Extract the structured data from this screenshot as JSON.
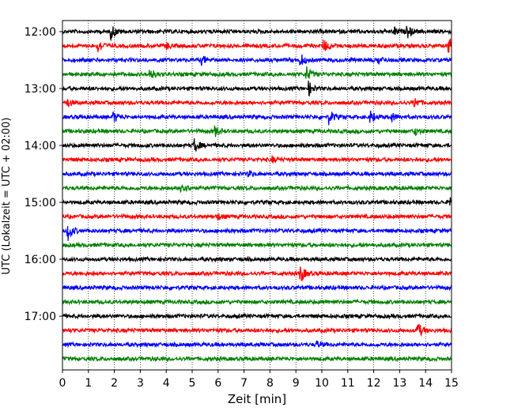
{
  "chart_data": {
    "type": "line",
    "title": "",
    "xlabel": "Zeit  [min]",
    "ylabel": "UTC (Lokalzeit = UTC + 02:00)",
    "xlim": [
      0,
      15
    ],
    "x_ticks": [
      "0",
      "1",
      "2",
      "3",
      "4",
      "5",
      "6",
      "7",
      "8",
      "9",
      "10",
      "11",
      "12",
      "13",
      "14",
      "15"
    ],
    "y_tick_labels": [
      "12:00",
      "13:00",
      "14:00",
      "15:00",
      "16:00",
      "17:00"
    ],
    "y_tick_trace_index": [
      0,
      4,
      8,
      12,
      16,
      20
    ],
    "grid": "vertical-dotted",
    "colors": [
      "#000000",
      "#ff0000",
      "#0000ff",
      "#008000"
    ],
    "traces": [
      {
        "start": "12:00",
        "color": "#000000",
        "events": [
          {
            "t": 1.9,
            "amp": 1.0
          },
          {
            "t": 13.3,
            "amp": 0.9
          },
          {
            "t": 12.8,
            "amp": 0.6
          }
        ]
      },
      {
        "start": "12:15",
        "color": "#ff0000",
        "events": [
          {
            "t": 1.4,
            "amp": 1.0
          },
          {
            "t": 4.0,
            "amp": 0.5
          },
          {
            "t": 10.1,
            "amp": 0.9
          },
          {
            "t": 14.9,
            "amp": 1.4
          }
        ]
      },
      {
        "start": "12:30",
        "color": "#0000ff",
        "events": [
          {
            "t": 5.4,
            "amp": 0.6
          },
          {
            "t": 9.2,
            "amp": 0.8
          },
          {
            "t": 12.2,
            "amp": 0.5
          }
        ]
      },
      {
        "start": "12:45",
        "color": "#008000",
        "events": [
          {
            "t": 3.4,
            "amp": 0.8
          },
          {
            "t": 9.4,
            "amp": 1.2
          }
        ]
      },
      {
        "start": "13:00",
        "color": "#000000",
        "events": [
          {
            "t": 9.5,
            "amp": 1.0
          }
        ]
      },
      {
        "start": "13:15",
        "color": "#ff0000",
        "events": [
          {
            "t": 0.2,
            "amp": 0.6
          },
          {
            "t": 13.6,
            "amp": 0.7
          }
        ]
      },
      {
        "start": "13:30",
        "color": "#0000ff",
        "events": [
          {
            "t": 2.0,
            "amp": 0.7
          },
          {
            "t": 10.3,
            "amp": 1.0
          },
          {
            "t": 11.9,
            "amp": 0.9
          },
          {
            "t": 12.7,
            "amp": 0.6
          }
        ]
      },
      {
        "start": "13:45",
        "color": "#008000",
        "events": [
          {
            "t": 5.9,
            "amp": 0.7
          },
          {
            "t": 13.6,
            "amp": 0.5
          }
        ]
      },
      {
        "start": "14:00",
        "color": "#000000",
        "events": [
          {
            "t": 5.1,
            "amp": 1.0
          }
        ]
      },
      {
        "start": "14:15",
        "color": "#ff0000",
        "events": [
          {
            "t": 8.1,
            "amp": 0.4
          }
        ]
      },
      {
        "start": "14:30",
        "color": "#0000ff",
        "events": [
          {
            "t": 7.2,
            "amp": 0.4
          }
        ]
      },
      {
        "start": "14:45",
        "color": "#008000",
        "events": [
          {
            "t": 4.6,
            "amp": 1.0
          }
        ]
      },
      {
        "start": "15:00",
        "color": "#000000",
        "events": [
          {
            "t": 14.95,
            "amp": 1.0
          }
        ]
      },
      {
        "start": "15:15",
        "color": "#ff0000",
        "events": [
          {
            "t": 6.0,
            "amp": 0.4
          }
        ]
      },
      {
        "start": "15:30",
        "color": "#0000ff",
        "events": [
          {
            "t": 0.2,
            "amp": 1.6
          }
        ]
      },
      {
        "start": "15:45",
        "color": "#008000",
        "events": []
      },
      {
        "start": "16:00",
        "color": "#000000",
        "events": []
      },
      {
        "start": "16:15",
        "color": "#ff0000",
        "events": [
          {
            "t": 9.2,
            "amp": 1.2
          }
        ]
      },
      {
        "start": "16:30",
        "color": "#0000ff",
        "events": []
      },
      {
        "start": "16:45",
        "color": "#008000",
        "events": []
      },
      {
        "start": "17:00",
        "color": "#000000",
        "events": []
      },
      {
        "start": "17:15",
        "color": "#ff0000",
        "events": [
          {
            "t": 13.7,
            "amp": 1.2
          }
        ]
      },
      {
        "start": "17:30",
        "color": "#0000ff",
        "events": [
          {
            "t": 9.8,
            "amp": 0.5
          }
        ]
      },
      {
        "start": "17:45",
        "color": "#008000",
        "events": []
      }
    ]
  }
}
